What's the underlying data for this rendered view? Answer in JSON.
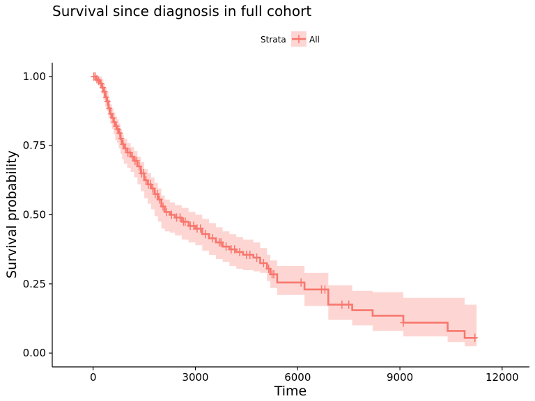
{
  "chart_data": {
    "type": "line",
    "title": "Survival since diagnosis in full cohort",
    "xlabel": "Time",
    "ylabel": "Survival probability",
    "xlim": [
      -1200,
      12800
    ],
    "ylim": [
      -0.05,
      1.05
    ],
    "x_ticks": [
      0,
      3000,
      6000,
      9000,
      12000
    ],
    "x_tick_labels": [
      "0",
      "3000",
      "6000",
      "9000",
      "12000"
    ],
    "y_ticks": [
      0,
      0.25,
      0.5,
      0.75,
      1
    ],
    "y_tick_labels": [
      "0.00",
      "0.25",
      "0.50",
      "0.75",
      "1.00"
    ],
    "grid": false,
    "legend": {
      "title": "Strata",
      "position": "top",
      "entries": [
        "All"
      ]
    },
    "colors": {
      "line": "#F8766D",
      "band": "#F8766D",
      "axis": "#000000"
    },
    "series": [
      {
        "name": "All",
        "step_x": [
          0,
          100,
          150,
          200,
          250,
          300,
          350,
          400,
          450,
          500,
          550,
          600,
          650,
          700,
          750,
          800,
          850,
          900,
          1000,
          1100,
          1200,
          1300,
          1400,
          1500,
          1600,
          1700,
          1800,
          1900,
          2000,
          2100,
          2250,
          2400,
          2600,
          2800,
          3000,
          3200,
          3400,
          3600,
          3800,
          4000,
          4200,
          4400,
          4700,
          4900,
          5100,
          5200,
          5400,
          6200,
          6900,
          7400,
          7600,
          8200,
          9100,
          10400,
          10900,
          11250
        ],
        "survival": [
          1.0,
          0.99,
          0.985,
          0.975,
          0.96,
          0.945,
          0.925,
          0.91,
          0.885,
          0.865,
          0.85,
          0.835,
          0.82,
          0.81,
          0.795,
          0.775,
          0.755,
          0.74,
          0.725,
          0.71,
          0.695,
          0.675,
          0.65,
          0.625,
          0.61,
          0.595,
          0.575,
          0.555,
          0.53,
          0.51,
          0.5,
          0.49,
          0.475,
          0.46,
          0.45,
          0.43,
          0.415,
          0.4,
          0.385,
          0.375,
          0.365,
          0.355,
          0.345,
          0.325,
          0.305,
          0.285,
          0.255,
          0.23,
          0.175,
          0.175,
          0.155,
          0.135,
          0.11,
          0.08,
          0.055,
          0.055
        ],
        "lower": [
          0.995,
          0.975,
          0.965,
          0.955,
          0.935,
          0.915,
          0.89,
          0.875,
          0.85,
          0.83,
          0.81,
          0.79,
          0.77,
          0.76,
          0.74,
          0.72,
          0.7,
          0.685,
          0.67,
          0.655,
          0.635,
          0.61,
          0.585,
          0.56,
          0.54,
          0.52,
          0.495,
          0.475,
          0.45,
          0.44,
          0.435,
          0.425,
          0.41,
          0.4,
          0.39,
          0.37,
          0.355,
          0.34,
          0.33,
          0.315,
          0.305,
          0.3,
          0.295,
          0.29,
          0.26,
          0.235,
          0.21,
          0.17,
          0.12,
          0.12,
          0.1,
          0.08,
          0.06,
          0.04,
          0.025,
          0.025
        ],
        "upper": [
          1.0,
          1.0,
          1.0,
          1.0,
          0.99,
          0.975,
          0.96,
          0.945,
          0.92,
          0.9,
          0.885,
          0.87,
          0.855,
          0.845,
          0.83,
          0.81,
          0.79,
          0.775,
          0.76,
          0.745,
          0.73,
          0.71,
          0.69,
          0.665,
          0.65,
          0.635,
          0.615,
          0.595,
          0.57,
          0.555,
          0.545,
          0.535,
          0.525,
          0.51,
          0.5,
          0.485,
          0.47,
          0.455,
          0.44,
          0.43,
          0.42,
          0.41,
          0.4,
          0.38,
          0.355,
          0.335,
          0.315,
          0.29,
          0.245,
          0.245,
          0.225,
          0.22,
          0.2,
          0.2,
          0.175,
          0.175
        ],
        "censor_x": [
          20,
          60,
          110,
          160,
          230,
          280,
          330,
          380,
          420,
          470,
          520,
          580,
          620,
          680,
          720,
          780,
          820,
          880,
          950,
          1020,
          1080,
          1150,
          1230,
          1280,
          1350,
          1420,
          1480,
          1550,
          1620,
          1680,
          1750,
          1820,
          1880,
          1950,
          2050,
          2150,
          2300,
          2450,
          2550,
          2650,
          2700,
          2850,
          2950,
          3050,
          3150,
          3300,
          3500,
          3700,
          3750,
          3900,
          4050,
          4150,
          4300,
          4500,
          4600,
          4800,
          5000,
          5150,
          5250,
          5300,
          6100,
          6700,
          6800,
          7300,
          7500,
          9100,
          11200
        ]
      }
    ]
  }
}
